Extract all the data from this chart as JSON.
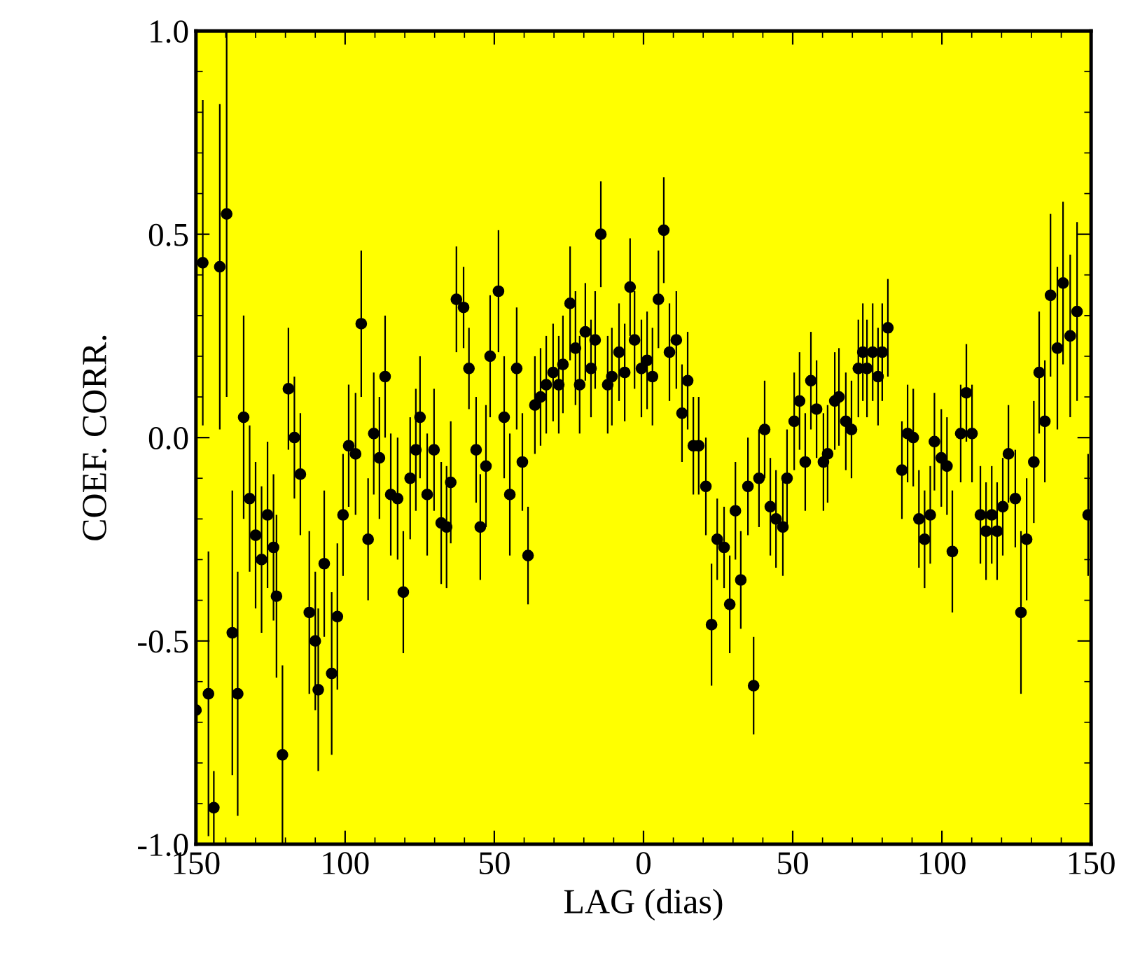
{
  "chart_data": {
    "type": "scatter",
    "xlabel": "LAG (dias)",
    "ylabel": "COEF. CORR.",
    "xlim": [
      -150,
      150
    ],
    "ylim": [
      -1.0,
      1.0
    ],
    "xticks": [
      {
        "value": -150,
        "label": "150"
      },
      {
        "value": -100,
        "label": "100"
      },
      {
        "value": -50,
        "label": "50"
      },
      0,
      50,
      100,
      150
    ],
    "yticks": [
      {
        "value": -1.0,
        "label": "-1.0"
      },
      {
        "value": -0.5,
        "label": "-0.5"
      },
      {
        "value": 0.0,
        "label": "0.0"
      },
      0.5,
      {
        "value": 1.0,
        "label": "1.0"
      }
    ],
    "grid": false,
    "marker": "circle",
    "series": [
      {
        "color": "#000000",
        "x": [
          -150,
          -147.7,
          -145.8,
          -144,
          -142,
          -139.7,
          -137.8,
          -136,
          -134,
          -132,
          -130,
          -128,
          -126,
          -124,
          -123,
          -121,
          -119,
          -117,
          -115,
          -112,
          -110,
          -109,
          -107,
          -104.5,
          -102.6,
          -100.7,
          -98.8,
          -96.5,
          -94.6,
          -92.3,
          -90.4,
          -88.5,
          -86.6,
          -84.7,
          -82.4,
          -80.5,
          -78.2,
          -76.3,
          -74.9,
          -72.5,
          -70.2,
          -67.8,
          -66,
          -64.6,
          -62.7,
          -60.3,
          -58.5,
          -56.1,
          -54.7,
          -52.8,
          -51.4,
          -48.6,
          -46.7,
          -44.8,
          -42.5,
          -40.6,
          -38.7,
          -36.4,
          -34.5,
          -32.6,
          -30.3,
          -28.4,
          -27,
          -24.6,
          -22.8,
          -21.4,
          -19.5,
          -17.6,
          -16.2,
          -14.3,
          -12,
          -10.6,
          -8.2,
          -6.3,
          -4.5,
          -3,
          -0.7,
          1.2,
          3,
          5,
          6.8,
          8.7,
          11,
          12.9,
          14.8,
          16.7,
          18.5,
          20.9,
          22.8,
          24.7,
          27,
          28.9,
          30.8,
          32.6,
          35,
          36.9,
          38.7,
          40.6,
          42.5,
          44.4,
          46.7,
          48.1,
          50.5,
          52.3,
          54.2,
          56.1,
          58,
          60.3,
          61.7,
          64.1,
          65.5,
          67.8,
          69.7,
          72,
          73.5,
          74.9,
          76.8,
          78.6,
          80,
          81.9,
          86.6,
          88.5,
          90.4,
          92.3,
          94.2,
          96.1,
          97.5,
          99.8,
          101.7,
          103.5,
          106.3,
          108.2,
          110.1,
          112.9,
          114.8,
          116.7,
          118.5,
          120.4,
          122.3,
          124.6,
          126.5,
          128.4,
          130.8,
          132.6,
          134.5,
          136.4,
          138.7,
          140.6,
          143,
          145.3,
          149
        ],
        "values": [
          -0.67,
          0.43,
          -0.63,
          -0.91,
          0.42,
          0.55,
          -0.48,
          -0.63,
          0.05,
          -0.15,
          -0.24,
          -0.3,
          -0.19,
          -0.27,
          -0.39,
          -0.78,
          0.12,
          0.0,
          -0.09,
          -0.43,
          -0.5,
          -0.62,
          -0.31,
          -0.58,
          -0.44,
          -0.19,
          -0.02,
          -0.04,
          0.28,
          -0.25,
          0.01,
          -0.05,
          0.15,
          -0.14,
          -0.15,
          -0.38,
          -0.1,
          -0.03,
          0.05,
          -0.14,
          -0.03,
          -0.21,
          -0.22,
          -0.11,
          0.34,
          0.32,
          0.17,
          -0.03,
          -0.22,
          -0.07,
          0.2,
          0.36,
          0.05,
          -0.14,
          0.17,
          -0.06,
          -0.29,
          0.08,
          0.1,
          0.13,
          0.16,
          0.13,
          0.18,
          0.33,
          0.22,
          0.13,
          0.26,
          0.17,
          0.24,
          0.5,
          0.13,
          0.15,
          0.21,
          0.16,
          0.37,
          0.24,
          0.17,
          0.19,
          0.15,
          0.34,
          0.51,
          0.21,
          0.24,
          0.06,
          0.14,
          -0.02,
          -0.02,
          -0.12,
          -0.46,
          -0.25,
          -0.27,
          -0.41,
          -0.18,
          -0.35,
          -0.12,
          -0.61,
          -0.1,
          0.02,
          -0.17,
          -0.2,
          -0.22,
          -0.1,
          0.04,
          0.09,
          -0.06,
          0.14,
          0.07,
          -0.06,
          -0.04,
          0.09,
          0.1,
          0.04,
          0.02,
          0.17,
          0.21,
          0.17,
          0.21,
          0.15,
          0.21,
          0.27,
          -0.08,
          0.01,
          0.0,
          -0.2,
          -0.25,
          -0.19,
          -0.01,
          -0.05,
          -0.07,
          -0.28,
          0.01,
          0.11,
          0.01,
          -0.19,
          -0.23,
          -0.19,
          -0.23,
          -0.17,
          -0.04,
          -0.15,
          -0.43,
          -0.25,
          -0.06,
          0.16,
          0.04,
          0.35,
          0.22,
          0.38,
          0.25,
          0.31,
          -0.19
        ],
        "errors": [
          0.3,
          0.4,
          0.35,
          0.09,
          0.4,
          0.45,
          0.35,
          0.3,
          0.25,
          0.18,
          0.18,
          0.18,
          0.18,
          0.18,
          0.2,
          0.22,
          0.15,
          0.15,
          0.15,
          0.2,
          0.17,
          0.2,
          0.18,
          0.2,
          0.18,
          0.15,
          0.15,
          0.15,
          0.18,
          0.15,
          0.15,
          0.15,
          0.15,
          0.15,
          0.15,
          0.15,
          0.15,
          0.15,
          0.15,
          0.15,
          0.15,
          0.15,
          0.15,
          0.15,
          0.13,
          0.1,
          0.1,
          0.13,
          0.13,
          0.15,
          0.15,
          0.15,
          0.15,
          0.15,
          0.15,
          0.12,
          0.12,
          0.12,
          0.12,
          0.12,
          0.12,
          0.12,
          0.12,
          0.14,
          0.14,
          0.12,
          0.12,
          0.12,
          0.12,
          0.13,
          0.12,
          0.12,
          0.12,
          0.12,
          0.12,
          0.12,
          0.12,
          0.12,
          0.12,
          0.12,
          0.13,
          0.12,
          0.12,
          0.12,
          0.12,
          0.12,
          0.12,
          0.12,
          0.15,
          0.1,
          0.1,
          0.12,
          0.12,
          0.12,
          0.12,
          0.12,
          0.12,
          0.12,
          0.12,
          0.12,
          0.12,
          0.12,
          0.12,
          0.12,
          0.12,
          0.12,
          0.12,
          0.12,
          0.12,
          0.12,
          0.12,
          0.12,
          0.12,
          0.12,
          0.12,
          0.12,
          0.12,
          0.12,
          0.12,
          0.12,
          0.12,
          0.12,
          0.12,
          0.12,
          0.12,
          0.12,
          0.12,
          0.12,
          0.12,
          0.15,
          0.12,
          0.12,
          0.12,
          0.12,
          0.12,
          0.12,
          0.12,
          0.12,
          0.12,
          0.12,
          0.2,
          0.15,
          0.15,
          0.15,
          0.15,
          0.2,
          0.2,
          0.2,
          0.2,
          0.22,
          0.15
        ]
      }
    ]
  }
}
